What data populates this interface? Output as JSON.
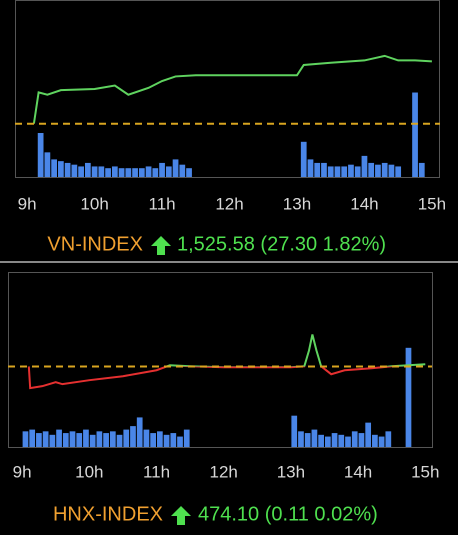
{
  "chart_data": [
    {
      "type": "line",
      "title": "VN-INDEX",
      "summary": "1,525.58 (27.30 1.82%)",
      "title_color": "#f0a030",
      "summary_color": "#4fe04f",
      "xlim": [
        8.82,
        15.12
      ],
      "xticks": [
        {
          "value": 9,
          "label": "9h"
        },
        {
          "value": 10,
          "label": "10h"
        },
        {
          "value": 11,
          "label": "11h"
        },
        {
          "value": 12,
          "label": "12h"
        },
        {
          "value": 13,
          "label": "13h"
        },
        {
          "value": 14,
          "label": "14h"
        },
        {
          "value": 15,
          "label": "15h"
        }
      ],
      "ylim": [
        1475,
        1552
      ],
      "y2lim": [
        0,
        100
      ],
      "reference": 1498.28,
      "reference_color": "#d9a520",
      "up_color": "#5fd35f",
      "down_color": "#e53030",
      "series": [
        {
          "name": "VN-INDEX",
          "x": [
            9.1,
            9.17,
            9.3,
            9.5,
            10,
            10.3,
            10.5,
            10.8,
            11,
            11.2,
            11.5,
            13,
            13.1,
            13.5,
            14,
            14.3,
            14.5,
            14.75,
            15
          ],
          "values": [
            1498.3,
            1512,
            1511,
            1513,
            1513.5,
            1515,
            1511,
            1514,
            1517,
            1519,
            1519.5,
            1519.5,
            1524,
            1525,
            1526,
            1528,
            1526,
            1526,
            1525.58
          ]
        },
        {
          "name": "Volume",
          "axis": "y2",
          "color": "#4a86e8",
          "x": [
            9.2,
            9.3,
            9.4,
            9.5,
            9.6,
            9.7,
            9.8,
            9.9,
            10,
            10.1,
            10.2,
            10.3,
            10.4,
            10.5,
            10.6,
            10.7,
            10.8,
            10.9,
            11,
            11.1,
            11.2,
            11.3,
            11.4,
            13.1,
            13.2,
            13.3,
            13.4,
            13.5,
            13.6,
            13.7,
            13.8,
            13.9,
            14,
            14.1,
            14.2,
            14.3,
            14.4,
            14.5,
            14.75,
            14.85
          ],
          "values": [
            25,
            14,
            10,
            9,
            8,
            7,
            6,
            8,
            6,
            6,
            5,
            6,
            5,
            5,
            5,
            5,
            6,
            5,
            8,
            6,
            10,
            7,
            5,
            20,
            10,
            8,
            8,
            6,
            6,
            6,
            7,
            6,
            12,
            8,
            7,
            8,
            7,
            6,
            48,
            8
          ]
        }
      ]
    },
    {
      "type": "line",
      "title": "HNX-INDEX",
      "summary": "474.10 (0.11 0.02%)",
      "title_color": "#f0a030",
      "summary_color": "#4fe04f",
      "xlim": [
        8.79,
        15.1
      ],
      "xticks": [
        {
          "value": 9,
          "label": "9h"
        },
        {
          "value": 10,
          "label": "10h"
        },
        {
          "value": 11,
          "label": "11h"
        },
        {
          "value": 12,
          "label": "12h"
        },
        {
          "value": 13,
          "label": "13h"
        },
        {
          "value": 14,
          "label": "14h"
        },
        {
          "value": 15,
          "label": "15h"
        }
      ],
      "ylim": [
        469.94,
        478.69
      ],
      "y2lim": [
        0,
        100
      ],
      "reference": 473.99,
      "reference_color": "#d9a520",
      "up_color": "#5fd35f",
      "down_color": "#e53030",
      "series": [
        {
          "name": "HNX-INDEX",
          "x": [
            9.1,
            9.12,
            9.3,
            9.5,
            9.6,
            10,
            10.5,
            11,
            11.2,
            11.5,
            12,
            13,
            13.2,
            13.27,
            13.32,
            13.38,
            13.45,
            13.6,
            13.8,
            14.2,
            14.5,
            14.75,
            15
          ],
          "values": [
            473.99,
            472.9,
            473,
            473.2,
            473.1,
            473.3,
            473.5,
            473.8,
            474.05,
            474,
            473.95,
            473.95,
            474,
            474.8,
            475.6,
            474.8,
            474,
            473.6,
            473.8,
            473.9,
            474,
            474.05,
            474.1
          ]
        },
        {
          "name": "Volume",
          "axis": "y2",
          "color": "#4a86e8",
          "x": [
            9.05,
            9.15,
            9.25,
            9.35,
            9.45,
            9.55,
            9.65,
            9.75,
            9.85,
            9.95,
            10.05,
            10.15,
            10.25,
            10.35,
            10.45,
            10.55,
            10.65,
            10.75,
            10.85,
            10.95,
            11.05,
            11.15,
            11.25,
            11.35,
            11.45,
            13.05,
            13.15,
            13.25,
            13.35,
            13.45,
            13.55,
            13.65,
            13.75,
            13.85,
            13.95,
            14.05,
            14.15,
            14.25,
            14.35,
            14.45,
            14.75
          ],
          "values": [
            9,
            10,
            8,
            9,
            7,
            10,
            8,
            9,
            8,
            10,
            7,
            9,
            8,
            9,
            7,
            10,
            12,
            17,
            10,
            8,
            9,
            7,
            8,
            6,
            10,
            18,
            9,
            8,
            10,
            7,
            6,
            8,
            7,
            6,
            9,
            8,
            14,
            7,
            6,
            9,
            57
          ]
        }
      ]
    }
  ]
}
